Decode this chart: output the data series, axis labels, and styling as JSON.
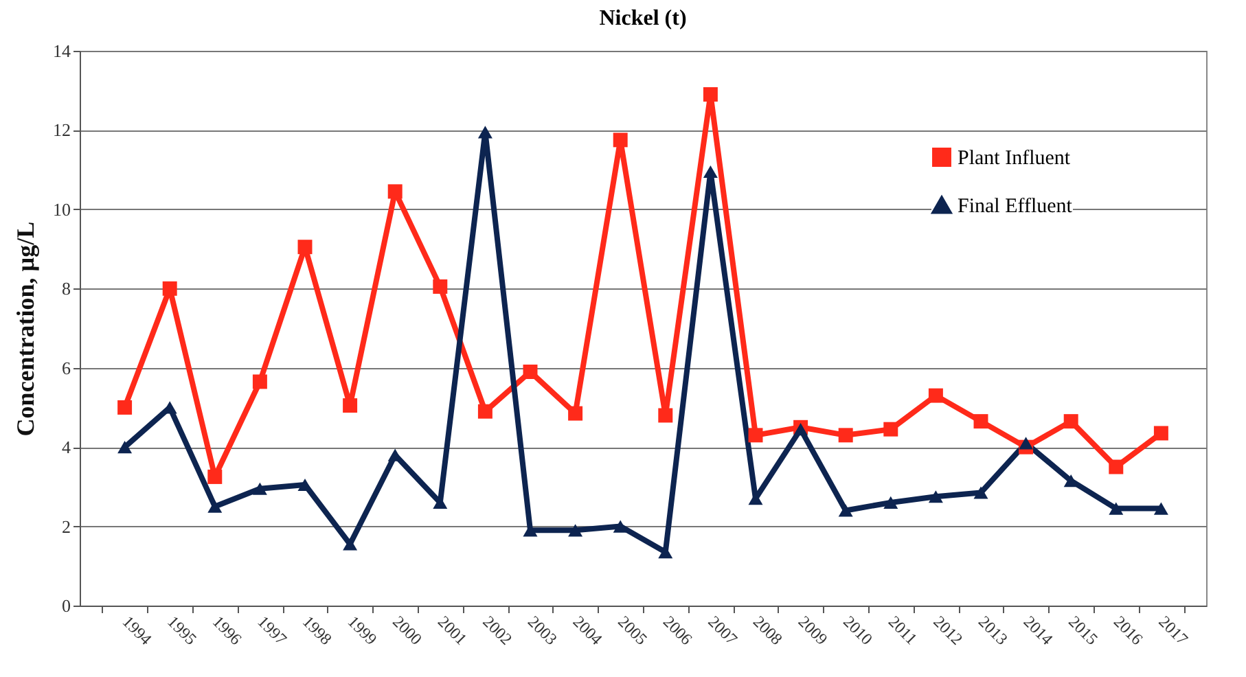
{
  "chart_data": {
    "type": "line",
    "title": "Nickel (t)",
    "ylabel": "Concentration, µg/L",
    "categories": [
      "1994",
      "1995",
      "1996",
      "1997",
      "1998",
      "1999",
      "2000",
      "2001",
      "2002",
      "2003",
      "2004",
      "2005",
      "2006",
      "2007",
      "2008",
      "2009",
      "2010",
      "2011",
      "2012",
      "2013",
      "2014",
      "2015",
      "2016",
      "2017"
    ],
    "series": [
      {
        "name": "Plant Influent",
        "color": "#ff2a1a",
        "marker": "square",
        "values": [
          5.0,
          8.0,
          3.25,
          5.65,
          9.05,
          5.05,
          10.45,
          8.05,
          4.9,
          5.9,
          4.85,
          11.75,
          4.8,
          12.9,
          4.3,
          4.5,
          4.3,
          4.45,
          5.3,
          4.65,
          4.0,
          4.65,
          3.5,
          4.35
        ]
      },
      {
        "name": "Final Effluent",
        "color": "#0d2450",
        "marker": "triangle",
        "values": [
          4.0,
          5.0,
          2.5,
          2.95,
          3.05,
          1.55,
          3.8,
          2.6,
          11.95,
          1.9,
          1.9,
          2.0,
          1.35,
          10.95,
          2.7,
          4.45,
          2.4,
          2.6,
          2.75,
          2.85,
          4.1,
          3.15,
          2.45,
          2.45
        ]
      }
    ],
    "ylim": [
      0,
      14
    ],
    "yticks": [
      0,
      2,
      4,
      6,
      8,
      10,
      12,
      14
    ],
    "grid": "y",
    "legend": "top right"
  }
}
